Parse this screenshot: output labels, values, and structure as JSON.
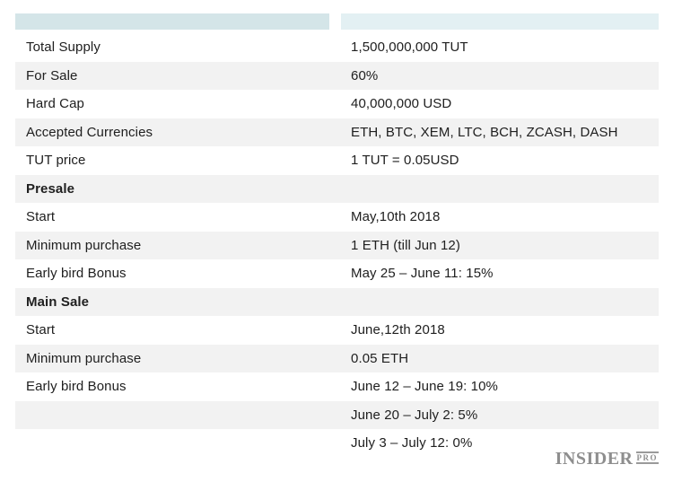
{
  "colors": {
    "header_left_bar": "#d4e5e8",
    "header_right_bar": "#e3f0f3",
    "row_stripe": "#f2f2f2",
    "text": "#202020",
    "logo_gray": "#8e8e8e"
  },
  "table": {
    "rows": [
      {
        "label": "Total Supply",
        "value": "1,500,000,000 TUT",
        "bold": false
      },
      {
        "label": "For Sale",
        "value": "60%",
        "bold": false
      },
      {
        "label": "Hard Cap",
        "value": "40,000,000 USD",
        "bold": false
      },
      {
        "label": "Accepted Currencies",
        "value": "ETH, BTC, XEM, LTC, BCH, ZCASH, DASH",
        "bold": false
      },
      {
        "label": "TUT price",
        "value": "1 TUT = 0.05USD",
        "bold": false
      },
      {
        "label": "Presale",
        "value": "",
        "bold": true
      },
      {
        "label": "Start",
        "value": "May,10th 2018",
        "bold": false
      },
      {
        "label": "Minimum purchase",
        "value": "1 ETH (till Jun 12)",
        "bold": false
      },
      {
        "label": "Early bird Bonus",
        "value": "May 25 – June 11: 15%",
        "bold": false
      },
      {
        "label": "Main Sale",
        "value": "",
        "bold": true
      },
      {
        "label": "Start",
        "value": "June,12th 2018",
        "bold": false
      },
      {
        "label": "Minimum purchase",
        "value": "0.05 ETH",
        "bold": false
      },
      {
        "label": "Early bird Bonus",
        "value": "June 12 – June 19: 10%",
        "bold": false
      },
      {
        "label": "",
        "value": "June 20 – July 2: 5%",
        "bold": false
      },
      {
        "label": "",
        "value": "July 3 – July 12: 0%",
        "bold": false
      }
    ]
  },
  "branding": {
    "name": "INSIDER",
    "suffix": "PRO"
  },
  "chart_data": {
    "type": "table",
    "title": "",
    "columns": [
      "",
      ""
    ],
    "rows": [
      [
        "Total Supply",
        "1,500,000,000 TUT"
      ],
      [
        "For Sale",
        "60%"
      ],
      [
        "Hard Cap",
        "40,000,000 USD"
      ],
      [
        "Accepted Currencies",
        "ETH, BTC, XEM, LTC, BCH, ZCASH, DASH"
      ],
      [
        "TUT price",
        "1 TUT = 0.05USD"
      ],
      [
        "Presale",
        ""
      ],
      [
        "Start",
        "May,10th 2018"
      ],
      [
        "Minimum purchase",
        "1 ETH (till Jun 12)"
      ],
      [
        "Early bird Bonus",
        "May 25 – June 11: 15%"
      ],
      [
        "Main Sale",
        ""
      ],
      [
        "Start",
        "June,12th 2018"
      ],
      [
        "Minimum purchase",
        "0.05 ETH"
      ],
      [
        "Early bird Bonus",
        "June 12 – June 19: 10%"
      ],
      [
        "",
        "June 20 – July 2: 5%"
      ],
      [
        "",
        "July 3 – July 12: 0%"
      ]
    ],
    "layout_hints": {
      "section_rows_bold": [
        "Presale",
        "Main Sale"
      ],
      "zebra_striping": true,
      "header_bars_empty": true
    }
  }
}
